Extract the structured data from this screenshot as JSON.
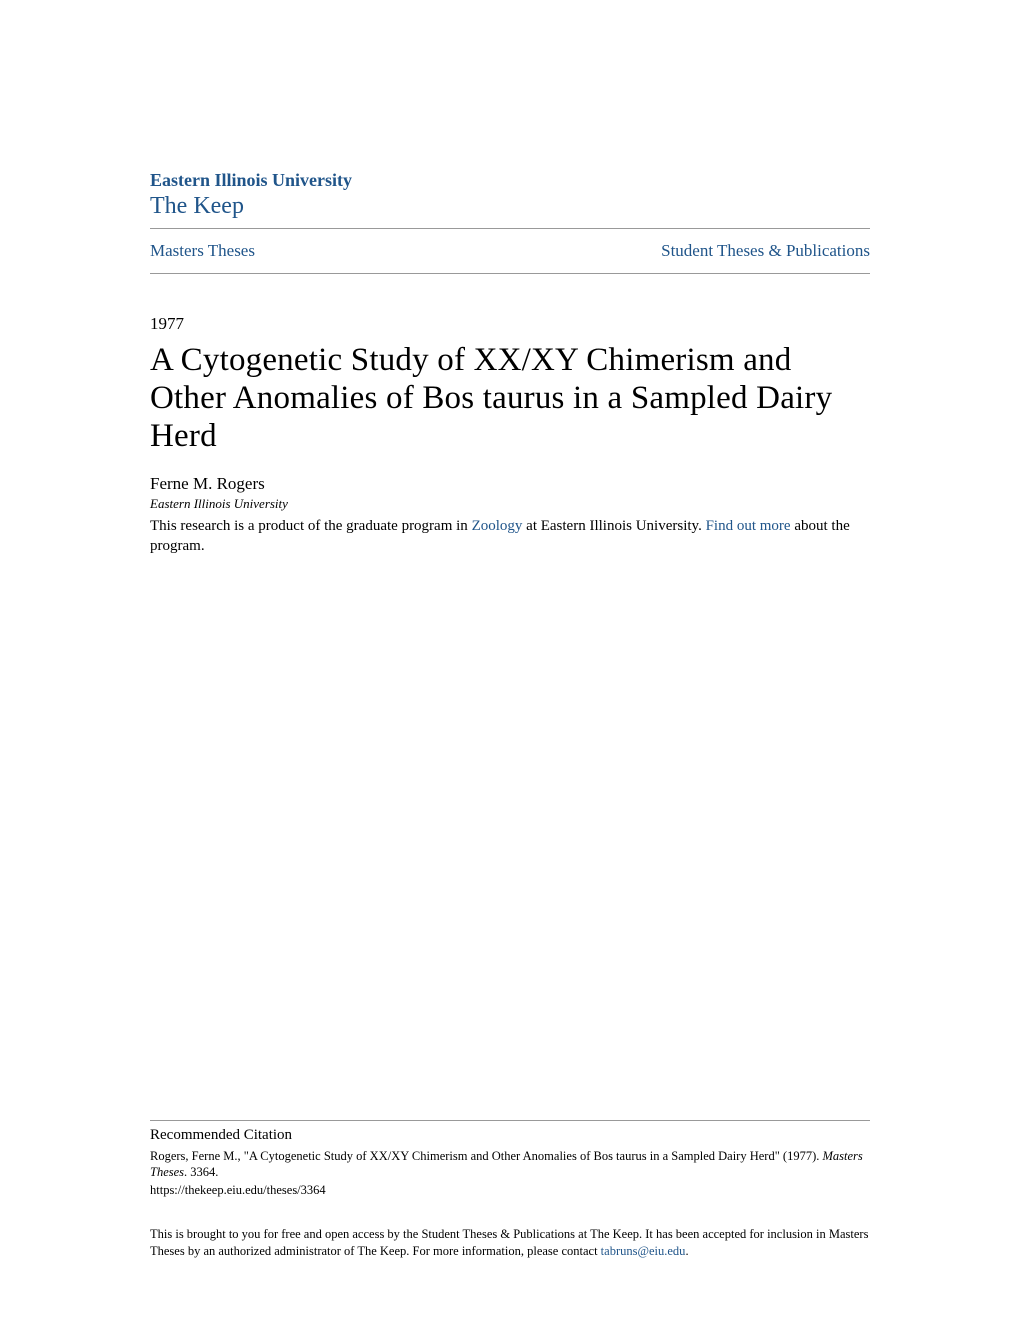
{
  "header": {
    "university": "Eastern Illinois University",
    "repository": "The Keep"
  },
  "nav": {
    "left": "Masters Theses",
    "right": "Student Theses & Publications"
  },
  "year": "1977",
  "title": "A Cytogenetic Study of XX/XY Chimerism and Other Anomalies of Bos taurus in a Sampled Dairy Herd",
  "author": "Ferne M. Rogers",
  "affiliation": "Eastern Illinois University",
  "description": {
    "prefix": "This research is a product of the graduate program in ",
    "link1": "Zoology",
    "mid": " at Eastern Illinois University. ",
    "link2": "Find out more",
    "suffix": " about the program."
  },
  "citation": {
    "heading": "Recommended Citation",
    "text": "Rogers, Ferne M., \"A Cytogenetic Study of XX/XY Chimerism and Other Anomalies of Bos taurus in a Sampled Dairy Herd\" (1977). ",
    "series": "Masters Theses",
    "number": ". 3364.",
    "url": "https://thekeep.eiu.edu/theses/3364"
  },
  "footer": {
    "prefix": "This is brought to you for free and open access by the Student Theses & Publications at The Keep. It has been accepted for inclusion in Masters Theses by an authorized administrator of The Keep. For more information, please contact ",
    "email": "tabruns@eiu.edu",
    "suffix": "."
  },
  "colors": {
    "link": "#20558a",
    "text": "#000000",
    "divider": "#999999",
    "background": "#ffffff"
  }
}
